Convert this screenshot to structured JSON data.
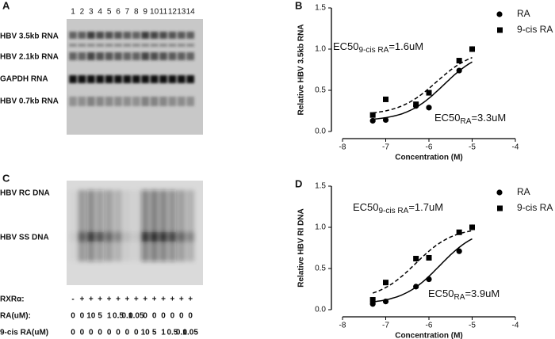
{
  "panels": {
    "A": {
      "label": "A",
      "lanes": [
        "1",
        "2",
        "3",
        "4",
        "5",
        "6",
        "7",
        "8",
        "9",
        "10",
        "11",
        "12",
        "13",
        "14"
      ],
      "bands": [
        "HBV 3.5kb RNA",
        "HBV 2.1kb RNA",
        "GAPDH RNA",
        "HBV 0.7kb RNA"
      ]
    },
    "C": {
      "label": "C",
      "bands": [
        "HBV RC DNA",
        "HBV SS DNA"
      ],
      "rows": [
        {
          "label": "RXRα:",
          "values": [
            "-",
            "+",
            "+",
            "+",
            "+",
            "+",
            "+",
            "+",
            "+",
            "+",
            "+",
            "+",
            "+",
            "+"
          ]
        },
        {
          "label": "RA(uM):",
          "values": [
            "0",
            "0",
            "10",
            "5",
            "1",
            "0.5",
            "0.1",
            "0.05",
            "0",
            "0",
            "0",
            "0",
            "0",
            "0"
          ]
        },
        {
          "label": "9-cis RA(uM)",
          "values": [
            "0",
            "0",
            "0",
            "0",
            "0",
            "0",
            "0",
            "0",
            "10",
            "5",
            "1",
            "0.5",
            "0.1",
            "0.05"
          ]
        }
      ]
    }
  },
  "chart_data": [
    {
      "type": "scatter",
      "panel_label": "B",
      "x_label": "Concentration (M)",
      "y_label": "Relative HBV 3.5kb RNA",
      "x": [
        -7.3,
        -7,
        -6.3,
        -6,
        -5.3,
        -5
      ],
      "series": [
        {
          "name": "RA",
          "color": "#000000",
          "marker": "circle",
          "line": "solid",
          "values": [
            0.13,
            0.14,
            0.31,
            0.29,
            0.74,
            1.0
          ]
        },
        {
          "name": "9-cis RA",
          "color": "#000000",
          "marker": "square",
          "line": "dashed",
          "values": [
            0.2,
            0.39,
            0.33,
            0.47,
            0.86,
            1.0
          ]
        }
      ],
      "annotations": [
        {
          "parts": [
            "EC50",
            "9-cis RA",
            "=1.6uM"
          ]
        },
        {
          "parts": [
            "EC50",
            "RA",
            "=3.3uM"
          ]
        }
      ],
      "xlim": [
        -8,
        -4
      ],
      "xticks": [
        -8,
        -7,
        -6,
        -5,
        -4
      ],
      "ylim": [
        0,
        1.5
      ],
      "yticks": [
        {
          "value": 0,
          "label": "0.0"
        },
        {
          "value": 0.5,
          "label": "0.5"
        },
        {
          "value": 1,
          "label": "1.0"
        },
        {
          "value": 1.5,
          "label": "1.5"
        }
      ],
      "legend": "top-right"
    },
    {
      "type": "scatter",
      "panel_label": "D",
      "x_label": "Concentration (M)",
      "y_label": "Relative HBV RI DNA",
      "x": [
        -7.3,
        -7,
        -6.3,
        -6,
        -5.3,
        -5
      ],
      "series": [
        {
          "name": "RA",
          "color": "#000000",
          "marker": "circle",
          "line": "solid",
          "values": [
            0.07,
            0.1,
            0.28,
            0.37,
            0.71,
            1.0
          ]
        },
        {
          "name": "9-cis RA",
          "color": "#000000",
          "marker": "square",
          "line": "dashed",
          "values": [
            0.12,
            0.33,
            0.62,
            0.63,
            0.94,
            1.0
          ]
        }
      ],
      "annotations": [
        {
          "parts": [
            "EC50",
            "9-cis RA",
            "=1.7uM"
          ]
        },
        {
          "parts": [
            "EC50",
            "RA",
            "=3.9uM"
          ]
        }
      ],
      "xlim": [
        -8,
        -4
      ],
      "xticks": [
        -8,
        -7,
        -6,
        -5,
        -4
      ],
      "ylim": [
        0,
        1.5
      ],
      "yticks": [
        {
          "value": 0,
          "label": "0.0"
        },
        {
          "value": 0.5,
          "label": "0.5"
        },
        {
          "value": 1,
          "label": "1.0"
        },
        {
          "value": 1.5,
          "label": "1.5"
        }
      ],
      "legend": "top-right"
    }
  ]
}
